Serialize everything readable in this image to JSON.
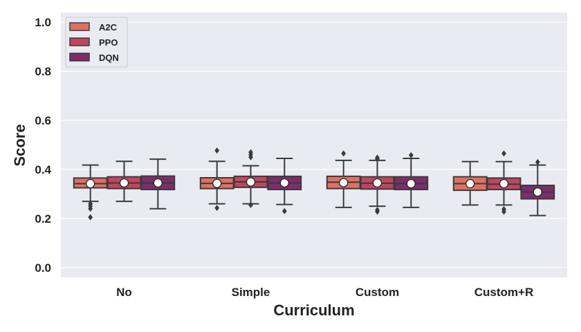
{
  "chart_data": {
    "type": "box",
    "title": "",
    "xlabel": "Curriculum",
    "ylabel": "Score",
    "ylim": [
      -0.04,
      1.04
    ],
    "yticks": [
      "0.0",
      "0.2",
      "0.4",
      "0.6",
      "0.8",
      "1.0"
    ],
    "grid": true,
    "legend_position": "top-left",
    "categories": [
      "No",
      "Simple",
      "Custom",
      "Custom+R"
    ],
    "series": [
      {
        "name": "A2C",
        "color": "#e07063",
        "boxes": [
          {
            "min": 0.27,
            "q1": 0.325,
            "median": 0.342,
            "q3": 0.365,
            "max": 0.418,
            "mean": 0.342,
            "outliers": [
              0.26,
              0.25,
              0.24,
              0.205
            ]
          },
          {
            "min": 0.26,
            "q1": 0.322,
            "median": 0.343,
            "q3": 0.366,
            "max": 0.433,
            "mean": 0.343,
            "outliers": [
              0.477,
              0.243
            ]
          },
          {
            "min": 0.245,
            "q1": 0.322,
            "median": 0.348,
            "q3": 0.372,
            "max": 0.437,
            "mean": 0.346,
            "outliers": [
              0.465
            ]
          },
          {
            "min": 0.255,
            "q1": 0.315,
            "median": 0.342,
            "q3": 0.37,
            "max": 0.432,
            "mean": 0.342,
            "outliers": []
          }
        ]
      },
      {
        "name": "PPO",
        "color": "#c0465f",
        "boxes": [
          {
            "min": 0.27,
            "q1": 0.322,
            "median": 0.345,
            "q3": 0.37,
            "max": 0.433,
            "mean": 0.345,
            "outliers": []
          },
          {
            "min": 0.26,
            "q1": 0.327,
            "median": 0.349,
            "q3": 0.372,
            "max": 0.415,
            "mean": 0.349,
            "outliers": [
              0.47,
              0.46,
              0.45,
              0.255
            ]
          },
          {
            "min": 0.25,
            "q1": 0.32,
            "median": 0.344,
            "q3": 0.37,
            "max": 0.437,
            "mean": 0.345,
            "outliers": [
              0.448,
              0.442,
              0.235,
              0.228
            ]
          },
          {
            "min": 0.255,
            "q1": 0.318,
            "median": 0.34,
            "q3": 0.365,
            "max": 0.432,
            "mean": 0.342,
            "outliers": [
              0.465,
              0.238,
              0.228
            ]
          }
        ]
      },
      {
        "name": "DQN",
        "color": "#7b2e6b",
        "boxes": [
          {
            "min": 0.24,
            "q1": 0.318,
            "median": 0.345,
            "q3": 0.373,
            "max": 0.442,
            "mean": 0.345,
            "outliers": []
          },
          {
            "min": 0.257,
            "q1": 0.318,
            "median": 0.345,
            "q3": 0.372,
            "max": 0.445,
            "mean": 0.345,
            "outliers": [
              0.23
            ]
          },
          {
            "min": 0.245,
            "q1": 0.318,
            "median": 0.342,
            "q3": 0.37,
            "max": 0.445,
            "mean": 0.342,
            "outliers": [
              0.458
            ]
          },
          {
            "min": 0.212,
            "q1": 0.28,
            "median": 0.308,
            "q3": 0.335,
            "max": 0.418,
            "mean": 0.308,
            "outliers": [
              0.43
            ]
          }
        ]
      }
    ]
  }
}
